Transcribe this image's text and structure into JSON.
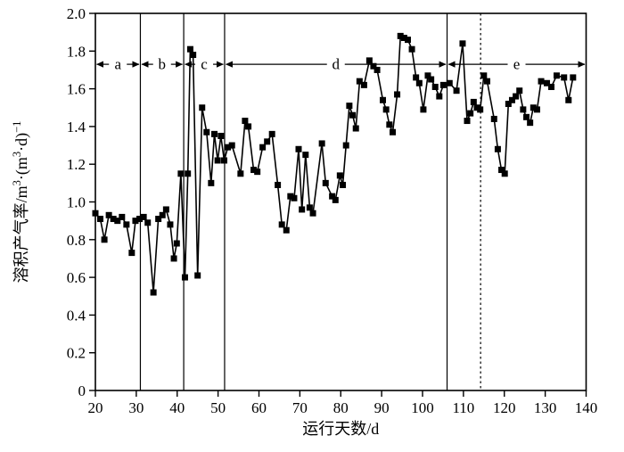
{
  "colors": {
    "foreground": "#000000",
    "background": "#ffffff"
  },
  "chart_data": {
    "type": "line",
    "title": "",
    "xlabel": "运行天数/d",
    "ylabel": "溶积产气率/m³·(m³·d)⁻¹",
    "ylabel_parts": [
      {
        "t": "溶积产气率/m"
      },
      {
        "t": "3",
        "sup": true
      },
      {
        "t": "·(m"
      },
      {
        "t": "3",
        "sup": true
      },
      {
        "t": "·d)"
      },
      {
        "t": "−1",
        "sup": true
      }
    ],
    "xlabel_parts": [
      {
        "t": "运行天数/d"
      }
    ],
    "xlim": [
      20,
      140
    ],
    "ylim": [
      0,
      2.0
    ],
    "xticks": [
      20,
      30,
      40,
      50,
      60,
      70,
      80,
      90,
      100,
      110,
      120,
      130,
      140
    ],
    "yticks": [
      0,
      0.2,
      0.4,
      0.6,
      0.8,
      1.0,
      1.2,
      1.4,
      1.6,
      1.8,
      2.0
    ],
    "grid": false,
    "legend": "none",
    "marker": "filled-square",
    "phase_lines": [
      {
        "x": 31,
        "style": "solid"
      },
      {
        "x": 41.6,
        "style": "solid"
      },
      {
        "x": 51.6,
        "style": "solid"
      },
      {
        "x": 106,
        "style": "solid"
      },
      {
        "x": 114.2,
        "style": "dashed"
      }
    ],
    "phases": [
      {
        "label": "a",
        "start": 20,
        "end": 31
      },
      {
        "label": "b",
        "start": 31,
        "end": 41.6
      },
      {
        "label": "c",
        "start": 41.6,
        "end": 51.6
      },
      {
        "label": "d",
        "start": 51.6,
        "end": 106
      },
      {
        "label": "e",
        "start": 106,
        "end": 140
      }
    ],
    "annotation_row_value": 1.73,
    "series": [
      {
        "name": "溶积产气率",
        "color": "#000000",
        "points": [
          [
            20,
            0.94
          ],
          [
            21.2,
            0.91
          ],
          [
            22.2,
            0.8
          ],
          [
            23.3,
            0.93
          ],
          [
            24.4,
            0.91
          ],
          [
            25.4,
            0.9
          ],
          [
            26.5,
            0.92
          ],
          [
            27.6,
            0.88
          ],
          [
            28.9,
            0.73
          ],
          [
            29.8,
            0.9
          ],
          [
            30.8,
            0.91
          ],
          [
            31.8,
            0.92
          ],
          [
            32.8,
            0.89
          ],
          [
            34.2,
            0.52
          ],
          [
            35.4,
            0.91
          ],
          [
            36.4,
            0.93
          ],
          [
            37.3,
            0.96
          ],
          [
            38.3,
            0.88
          ],
          [
            39.2,
            0.7
          ],
          [
            39.9,
            0.78
          ],
          [
            40.9,
            1.15
          ],
          [
            41.9,
            0.6
          ],
          [
            42.6,
            1.15
          ],
          [
            43.2,
            1.81
          ],
          [
            43.9,
            1.78
          ],
          [
            45,
            0.61
          ],
          [
            46.1,
            1.5
          ],
          [
            47.2,
            1.37
          ],
          [
            48.3,
            1.1
          ],
          [
            49.1,
            1.36
          ],
          [
            49.9,
            1.22
          ],
          [
            50.7,
            1.35
          ],
          [
            51.5,
            1.22
          ],
          [
            52.4,
            1.29
          ],
          [
            53.4,
            1.3
          ],
          [
            55.5,
            1.15
          ],
          [
            56.6,
            1.43
          ],
          [
            57.4,
            1.4
          ],
          [
            58.7,
            1.17
          ],
          [
            59.6,
            1.16
          ],
          [
            60.9,
            1.29
          ],
          [
            62,
            1.32
          ],
          [
            63.2,
            1.36
          ],
          [
            64.6,
            1.09
          ],
          [
            65.6,
            0.88
          ],
          [
            66.7,
            0.85
          ],
          [
            67.7,
            1.03
          ],
          [
            68.6,
            1.02
          ],
          [
            69.7,
            1.28
          ],
          [
            70.5,
            0.96
          ],
          [
            71.4,
            1.25
          ],
          [
            72.4,
            0.97
          ],
          [
            73.2,
            0.94
          ],
          [
            75.4,
            1.31
          ],
          [
            76.3,
            1.1
          ],
          [
            77.9,
            1.03
          ],
          [
            78.7,
            1.01
          ],
          [
            79.8,
            1.14
          ],
          [
            80.5,
            1.09
          ],
          [
            81.3,
            1.3
          ],
          [
            82.1,
            1.51
          ],
          [
            82.9,
            1.46
          ],
          [
            83.7,
            1.39
          ],
          [
            84.6,
            1.64
          ],
          [
            85.7,
            1.62
          ],
          [
            87,
            1.75
          ],
          [
            88,
            1.72
          ],
          [
            88.9,
            1.7
          ],
          [
            90.3,
            1.54
          ],
          [
            91.1,
            1.49
          ],
          [
            91.9,
            1.41
          ],
          [
            92.7,
            1.37
          ],
          [
            93.8,
            1.57
          ],
          [
            94.6,
            1.88
          ],
          [
            95.5,
            1.87
          ],
          [
            96.4,
            1.86
          ],
          [
            97.4,
            1.81
          ],
          [
            98.4,
            1.66
          ],
          [
            99.2,
            1.63
          ],
          [
            100.2,
            1.49
          ],
          [
            101.3,
            1.67
          ],
          [
            102.1,
            1.65
          ],
          [
            103.1,
            1.61
          ],
          [
            104.1,
            1.56
          ],
          [
            105.1,
            1.62
          ],
          [
            106.6,
            1.63
          ],
          [
            108.3,
            1.59
          ],
          [
            109.8,
            1.84
          ],
          [
            110.9,
            1.43
          ],
          [
            111.7,
            1.47
          ],
          [
            112.5,
            1.53
          ],
          [
            113.3,
            1.5
          ],
          [
            114.1,
            1.49
          ],
          [
            115,
            1.67
          ],
          [
            115.8,
            1.64
          ],
          [
            117.5,
            1.44
          ],
          [
            118.4,
            1.28
          ],
          [
            119.3,
            1.17
          ],
          [
            120.1,
            1.15
          ],
          [
            121,
            1.52
          ],
          [
            121.9,
            1.54
          ],
          [
            122.8,
            1.56
          ],
          [
            123.7,
            1.59
          ],
          [
            124.6,
            1.49
          ],
          [
            125.4,
            1.45
          ],
          [
            126.3,
            1.42
          ],
          [
            127.1,
            1.5
          ],
          [
            128,
            1.49
          ],
          [
            129,
            1.64
          ],
          [
            130.4,
            1.63
          ],
          [
            131.5,
            1.61
          ],
          [
            132.8,
            1.67
          ],
          [
            134.6,
            1.66
          ],
          [
            135.7,
            1.54
          ],
          [
            136.8,
            1.66
          ]
        ]
      }
    ]
  }
}
